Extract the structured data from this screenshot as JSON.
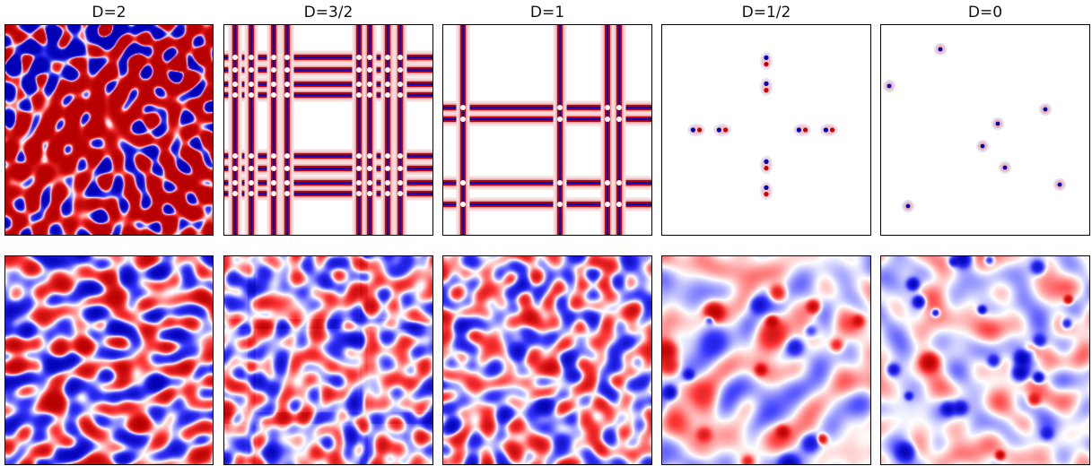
{
  "columns": [
    {
      "title": "D=2"
    },
    {
      "title": "D=3/2"
    },
    {
      "title": "D=1"
    },
    {
      "title": "D=1/2"
    },
    {
      "title": "D=0"
    }
  ],
  "colors": {
    "positive": "#cc0000",
    "negative": "#0000bb",
    "background": "#ffffff",
    "frame": "#000000"
  },
  "rows": [
    {
      "kind": "steady-state field",
      "panels": [
        "dense-cellular",
        "sheet-lattice",
        "sheet-lattice-sparse",
        "point-pairs-cross",
        "isolated-points"
      ]
    },
    {
      "kind": "turbulent field",
      "panels": [
        "turbulence-uniform",
        "turbulence-sheets",
        "turbulence-sheets-sparse",
        "turbulence-vortex-clusters",
        "turbulence-isolated-vortices"
      ]
    }
  ]
}
